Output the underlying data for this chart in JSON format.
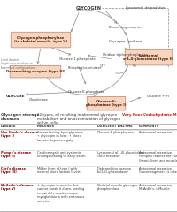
{
  "bg_color": "#ffffff",
  "box_fill": "#f5d5c0",
  "box_border": "#c08060",
  "arrow_color": "#888888",
  "text_dark": "#333333",
  "text_dim": "#666666",
  "section_title_color": "#8B0000",
  "diagram": {
    "glycogen_label": "GLYCOGEN",
    "lysosomal_deg": "Lysosomal degradation",
    "branching": "Branching enzymes",
    "glycogen_synthase": "Glycogen synthase",
    "uridine": "Uridine diphosphoglucose",
    "utp": "UTP",
    "ppi": "PPi",
    "glucose1p": "Glucose-1-phosphate",
    "phosphoglucomutase": "Phosphoglucomutase",
    "glucose6p": "Glucose-6-phosphate",
    "glucokinase": "Glucokinase",
    "glucose": "GLUCOSE",
    "glucosep": "Glucose + Pi",
    "box1_text": "Glycogen phosphorylase\n(in skeletal muscle, type V)",
    "box2_text": "Lysosomal\nα-1,4-glucosidase (type II)",
    "box3_text": "Debranching enzyme (type III)",
    "box4_text": "Glucose-6-\nphosphatase (type I)",
    "limit_dextrin": "Limit dextrin\n(if glucose residues in\nbranched configuration)"
  },
  "table_data": {
    "intro_bold": "Glycogen storage\ndiseases",
    "intro_text": "12 types, all resulting in abnormal glycogen\nmetabolism and an accumulation of glycogen\nwithin cells.",
    "intro_right": "Very Poor Carbohydrate Metabolism.",
    "columns": [
      "DISEASE",
      "FINDINGS",
      "DEFICIENT ENZYME",
      "COMMENTS"
    ],
    "rows": [
      {
        "disease": "Von Gierke's disease\n(type I)",
        "findings": "Severe fasting hypoglycemia,\n↑ glycogen in liver, ↑ blood\nlactate, hepatomegaly",
        "enzyme": "Glucose-6-phosphatase",
        "comments": "Autosomal recessive."
      },
      {
        "disease": "Pompe's disease\n(type II)",
        "findings": "Cardiomegaly and systemic\nfindings leading to early death",
        "enzyme": "Lysosomal α(1,4)-glucosidase\n(acid maltase)",
        "comments": "Autosomal recessive.\nPompe's trashes the Pump\n(heart, liver, and muscle)."
      },
      {
        "disease": "Cori's disease\n(type III)",
        "findings": "Milder form of type I with\nnormal blood lactate levels",
        "enzyme": "Debranching enzyme\n(α(1,6)-glucosidase)",
        "comments": "Autosomal recessive.\nGluconeogenesis is intact."
      },
      {
        "disease": "McArdle's disease\n(type V)",
        "findings": "↑ glycogen in muscle, but\ncannot break it down, leading\nto painful muscle cramps,\nmyoglobinuria with strenuous\nexercise",
        "enzyme": "Skeletal muscle glycogen\nphosphorylase",
        "comments": "Autosomal recessive.\nMcArdle's = Muscle."
      }
    ]
  }
}
